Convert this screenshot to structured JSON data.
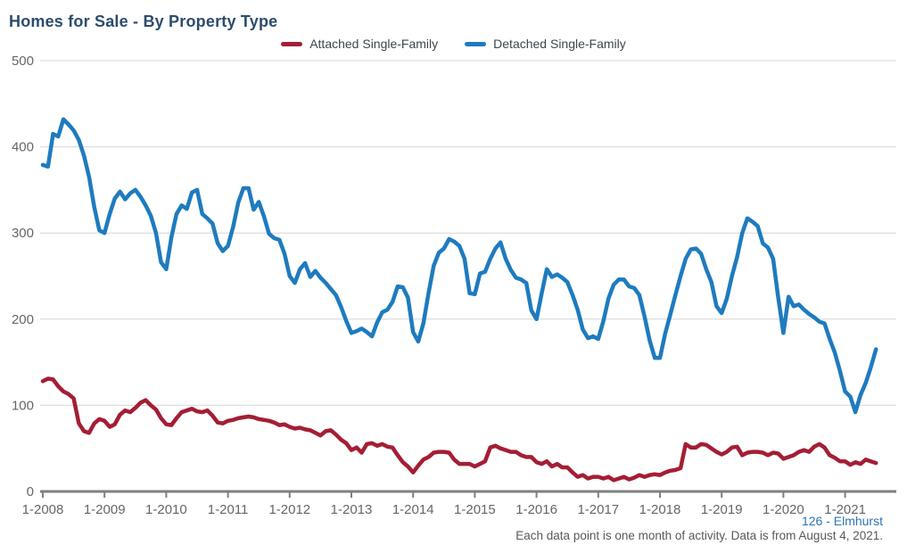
{
  "title": "Homes for Sale - By Property Type",
  "legend": [
    {
      "label": "Attached Single-Family",
      "color": "#A41E35"
    },
    {
      "label": "Detached Single-Family",
      "color": "#1E7BBE"
    }
  ],
  "footer": {
    "source_link": "126 - Elmhurst",
    "note": "Each data point is one month of activity. Data is from August 4, 2021."
  },
  "colors": {
    "title": "#2C4C6C",
    "grid": "#D6D6D6",
    "axis": "#7F7F7F",
    "tick_text": "#666666",
    "attached": "#A41E35",
    "detached": "#1E7BBE"
  },
  "chart_data": {
    "type": "line",
    "title": "Homes for Sale - By Property Type",
    "xlabel": "",
    "ylabel": "",
    "x_start": "2008-01",
    "x_end": "2021-07",
    "points_per_month": 1,
    "x_tick_labels": [
      "1-2008",
      "1-2009",
      "1-2010",
      "1-2011",
      "1-2012",
      "1-2013",
      "1-2014",
      "1-2015",
      "1-2016",
      "1-2017",
      "1-2018",
      "1-2019",
      "1-2020",
      "1-2021"
    ],
    "y_ticks": [
      0,
      100,
      200,
      300,
      400,
      500
    ],
    "ylim": [
      0,
      500
    ],
    "grid": "horizontal",
    "legend_position": "top-center",
    "series": [
      {
        "name": "Attached Single-Family",
        "color": "#A41E35",
        "values": [
          128,
          131,
          130,
          122,
          116,
          113,
          108,
          79,
          70,
          68,
          79,
          84,
          82,
          75,
          78,
          89,
          94,
          92,
          97,
          103,
          106,
          100,
          95,
          85,
          78,
          77,
          85,
          92,
          94,
          96,
          93,
          92,
          94,
          88,
          80,
          79,
          82,
          83,
          85,
          86,
          87,
          86,
          84,
          83,
          82,
          80,
          77,
          78,
          75,
          73,
          74,
          72,
          71,
          68,
          65,
          70,
          71,
          66,
          60,
          56,
          48,
          51,
          45,
          55,
          56,
          53,
          55,
          52,
          51,
          42,
          34,
          29,
          22,
          30,
          37,
          40,
          45,
          46,
          46,
          45,
          37,
          32,
          32,
          32,
          29,
          32,
          35,
          51,
          53,
          50,
          48,
          46,
          46,
          42,
          40,
          40,
          34,
          32,
          35,
          29,
          32,
          28,
          28,
          22,
          17,
          19,
          15,
          17,
          17,
          15,
          17,
          13,
          15,
          17,
          14,
          16,
          19,
          17,
          19,
          20,
          19,
          22,
          24,
          25,
          27,
          55,
          51,
          51,
          55,
          54,
          50,
          46,
          43,
          46,
          51,
          52,
          42,
          45,
          46,
          46,
          45,
          42,
          45,
          44,
          38,
          40,
          42,
          46,
          48,
          46,
          52,
          55,
          51,
          42,
          39,
          35,
          35,
          31,
          34,
          32,
          37,
          35,
          33
        ]
      },
      {
        "name": "Detached Single-Family",
        "color": "#1E7BBE",
        "values": [
          379,
          377,
          415,
          412,
          432,
          426,
          419,
          408,
          390,
          365,
          330,
          303,
          300,
          322,
          340,
          348,
          339,
          346,
          350,
          342,
          332,
          320,
          300,
          266,
          258,
          295,
          322,
          332,
          328,
          347,
          350,
          322,
          317,
          311,
          288,
          279,
          285,
          307,
          335,
          352,
          352,
          327,
          336,
          319,
          299,
          294,
          292,
          276,
          250,
          242,
          258,
          265,
          249,
          256,
          248,
          242,
          235,
          228,
          214,
          198,
          184,
          186,
          189,
          185,
          180,
          196,
          208,
          211,
          220,
          238,
          237,
          225,
          185,
          174,
          195,
          230,
          262,
          277,
          282,
          293,
          290,
          285,
          270,
          230,
          229,
          253,
          255,
          270,
          282,
          289,
          270,
          257,
          248,
          246,
          242,
          210,
          200,
          230,
          258,
          249,
          252,
          248,
          243,
          228,
          211,
          188,
          178,
          180,
          177,
          198,
          224,
          240,
          246,
          246,
          238,
          236,
          228,
          203,
          175,
          155,
          155,
          183,
          205,
          228,
          250,
          270,
          281,
          282,
          276,
          258,
          243,
          215,
          207,
          224,
          250,
          272,
          300,
          317,
          313,
          308,
          288,
          283,
          270,
          225,
          184,
          226,
          215,
          217,
          211,
          206,
          202,
          197,
          195,
          177,
          161,
          140,
          116,
          110,
          92,
          112,
          126,
          144,
          165
        ]
      }
    ]
  }
}
